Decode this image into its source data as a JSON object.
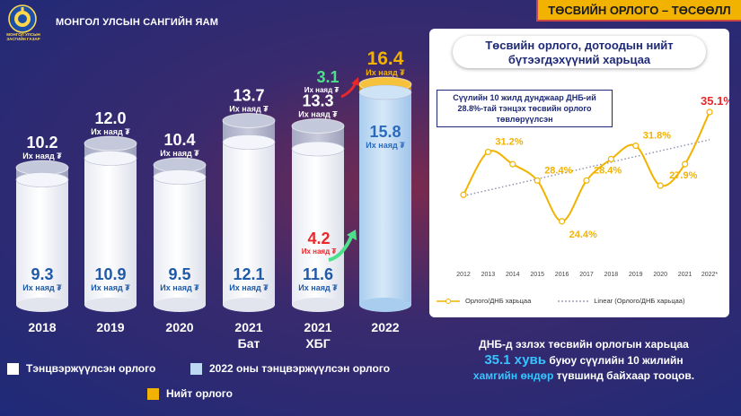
{
  "header": {
    "org_name": "МОНГОЛ УЛСЫН ЗАСГИЙН ГАЗАР",
    "ministry": "МОНГОЛ УЛСЫН САНГИЙН ЯАМ",
    "banner": "ТӨСВИЙН ОРЛОГО – ТӨСӨӨЛЛ"
  },
  "unit_label": "Их наяд ₮",
  "chart_data": [
    {
      "type": "bar",
      "categories": [
        "2018",
        "2019",
        "2020",
        "2021 Бат",
        "2021 ХБГ",
        "2022"
      ],
      "category_lines": [
        [
          "2018"
        ],
        [
          "2019"
        ],
        [
          "2020"
        ],
        [
          "2021",
          "Бат"
        ],
        [
          "2021",
          "ХБГ"
        ],
        [
          "2022"
        ]
      ],
      "series": [
        {
          "name": "Тэнцвэржүүлсэн орлого",
          "values": [
            9.3,
            10.9,
            9.5,
            12.1,
            11.6,
            15.8
          ]
        },
        {
          "name": "Нийт орлого",
          "values": [
            10.2,
            12.0,
            10.4,
            13.7,
            13.3,
            16.4
          ]
        }
      ],
      "annotations": [
        {
          "category": "2021 ХБГ",
          "value": "4.2",
          "label": "Их наяд ₮",
          "color": "#e8282b"
        },
        {
          "category": "2022",
          "value": "3.1",
          "label": "Их наяд ₮",
          "color": "#4de08a"
        }
      ],
      "highlight_total_color": "#f2b300",
      "legend": [
        {
          "label": "Тэнцвэржүүлсэн орлого",
          "color": "#ffffff"
        },
        {
          "label": "2022 оны тэнцвэржүүлсэн орлого",
          "color": "#bcd8f2"
        },
        {
          "label": "Нийт орлого",
          "color": "#f2b300"
        }
      ]
    },
    {
      "type": "line",
      "title": "Төсвийн орлого, дотоодын нийт бүтээгдэхүүний харьцаа",
      "note": "Сүүлийн 10 жилд дунджаар ДНБ-ий 28.8%-тай тэнцэх төсвийн орлого төвлөрүүлсэн",
      "x": [
        "2012",
        "2013",
        "2014",
        "2015",
        "2016",
        "2017",
        "2018",
        "2019",
        "2020",
        "2021",
        "2022*"
      ],
      "values": [
        27.0,
        31.2,
        30.0,
        28.4,
        24.4,
        28.4,
        30.5,
        31.8,
        27.9,
        30.0,
        35.1
      ],
      "point_labels": [
        {
          "index": 1,
          "text": "31.2%"
        },
        {
          "index": 3,
          "text": "28.4%"
        },
        {
          "index": 4,
          "text": "24.4%"
        },
        {
          "index": 5,
          "text": "28.4%"
        },
        {
          "index": 7,
          "text": "31.8%"
        },
        {
          "index": 8,
          "text": "27.9%"
        },
        {
          "index": 10,
          "text": "35.1%",
          "color": "#e8282b"
        }
      ],
      "trend": [
        26.9,
        32.4
      ],
      "ylim": [
        20,
        38
      ],
      "series_color": "#f2b300",
      "legend": [
        "Орлого/ДНБ харьцаа",
        "Linear (Орлого/ДНБ харьцаа)"
      ]
    }
  ],
  "summary": {
    "line1": "ДНБ-д эзлэх төсвийн орлогын харьцаа",
    "line2_value": "35.1 хувь",
    "line2_rest": " буюу сүүлийн 10 жилийн",
    "line3_hl": "хамгийн өндөр",
    "line3_rest": " түвшинд байхаар тооцов."
  }
}
